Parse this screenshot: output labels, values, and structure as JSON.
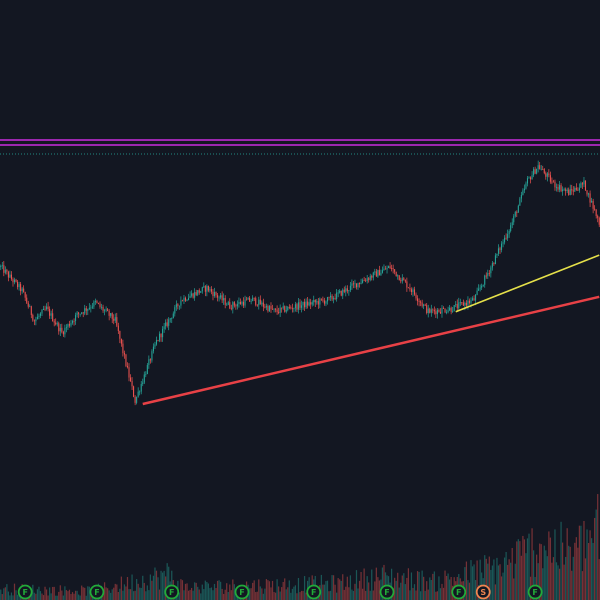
{
  "theme": {
    "background": "#131722",
    "up_color": "#26a69a",
    "down_color": "#ef5350",
    "resistance_color": "#9c27b0",
    "support_trendline_color": "#e84146",
    "minor_trendline_color": "#e5e04a",
    "dotted_line_color": "#26a69a",
    "marker_f_color": "#22ab39",
    "marker_s_color": "#f08550"
  },
  "chart_data": {
    "type": "candlestick",
    "title": "",
    "xlabel": "",
    "ylabel": "",
    "grid": false,
    "legend": "none",
    "price_path_keypoints": [
      {
        "bar": 0,
        "price": 60
      },
      {
        "bar": 14,
        "price": 52
      },
      {
        "bar": 22,
        "price": 42
      },
      {
        "bar": 30,
        "price": 46
      },
      {
        "bar": 40,
        "price": 38
      },
      {
        "bar": 50,
        "price": 44
      },
      {
        "bar": 62,
        "price": 48
      },
      {
        "bar": 75,
        "price": 42
      },
      {
        "bar": 88,
        "price": 15
      },
      {
        "bar": 102,
        "price": 35
      },
      {
        "bar": 118,
        "price": 49
      },
      {
        "bar": 135,
        "price": 53
      },
      {
        "bar": 150,
        "price": 47
      },
      {
        "bar": 165,
        "price": 49
      },
      {
        "bar": 180,
        "price": 45
      },
      {
        "bar": 195,
        "price": 47
      },
      {
        "bar": 215,
        "price": 49
      },
      {
        "bar": 235,
        "price": 55
      },
      {
        "bar": 255,
        "price": 60
      },
      {
        "bar": 268,
        "price": 53
      },
      {
        "bar": 280,
        "price": 45
      },
      {
        "bar": 295,
        "price": 46
      },
      {
        "bar": 310,
        "price": 49
      },
      {
        "bar": 322,
        "price": 61
      },
      {
        "bar": 335,
        "price": 75
      },
      {
        "bar": 345,
        "price": 89
      },
      {
        "bar": 352,
        "price": 94
      },
      {
        "bar": 362,
        "price": 88
      },
      {
        "bar": 372,
        "price": 85
      },
      {
        "bar": 382,
        "price": 88
      },
      {
        "bar": 392,
        "price": 75
      }
    ],
    "resistance_level": 100,
    "dotted_level": 98,
    "support_trendline": {
      "start": {
        "bar": 93,
        "price": 14
      },
      "end": {
        "bar": 392,
        "price": 50
      }
    },
    "minor_trendline": {
      "start": {
        "bar": 298,
        "price": 45
      },
      "end": {
        "bar": 392,
        "price": 64
      }
    },
    "volume_profile": [
      {
        "bar": 0,
        "volume": 12
      },
      {
        "bar": 60,
        "volume": 10
      },
      {
        "bar": 110,
        "volume": 28
      },
      {
        "bar": 120,
        "volume": 14
      },
      {
        "bar": 220,
        "volume": 18
      },
      {
        "bar": 250,
        "volume": 26
      },
      {
        "bar": 285,
        "volume": 20
      },
      {
        "bar": 330,
        "volume": 38
      },
      {
        "bar": 355,
        "volume": 62
      },
      {
        "bar": 375,
        "volume": 50
      },
      {
        "bar": 392,
        "volume": 78
      }
    ],
    "event_markers": [
      {
        "bar": 16,
        "label": "F"
      },
      {
        "bar": 63,
        "label": "F"
      },
      {
        "bar": 112,
        "label": "F"
      },
      {
        "bar": 158,
        "label": "F"
      },
      {
        "bar": 205,
        "label": "F"
      },
      {
        "bar": 253,
        "label": "F"
      },
      {
        "bar": 300,
        "label": "F"
      },
      {
        "bar": 316,
        "label": "S"
      },
      {
        "bar": 350,
        "label": "F"
      }
    ]
  }
}
